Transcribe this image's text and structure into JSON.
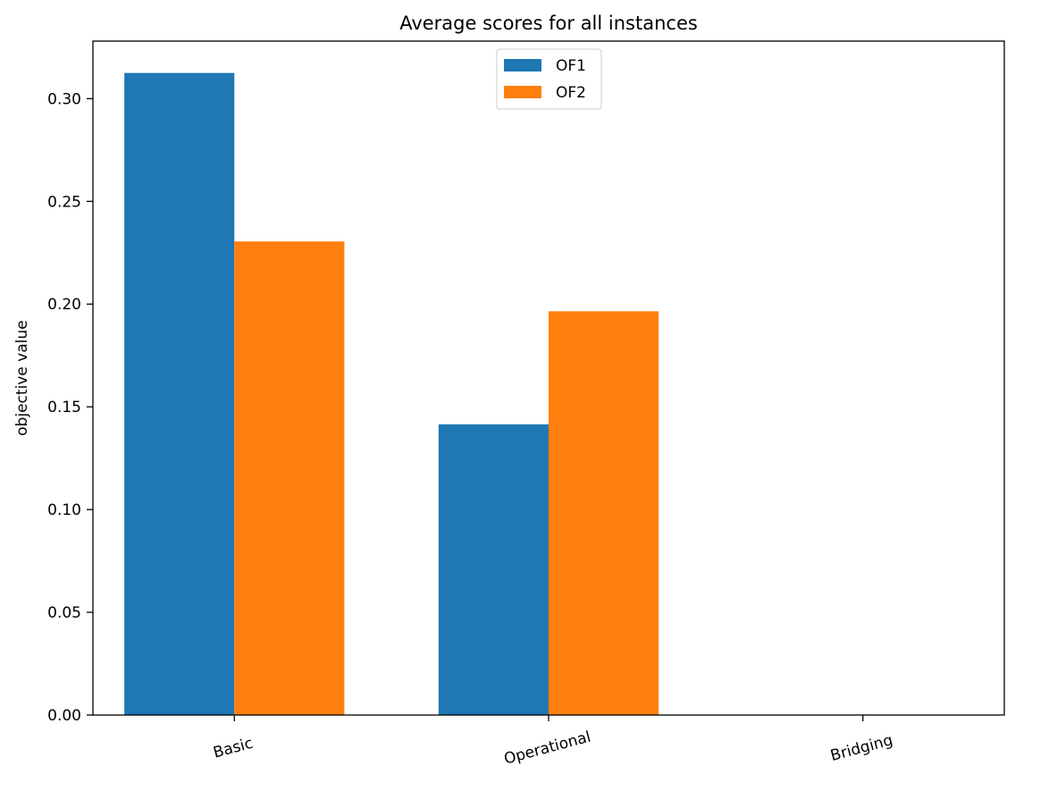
{
  "chart_data": {
    "type": "bar",
    "title": "Average scores for all instances",
    "xlabel": "",
    "ylabel": "objective value",
    "categories": [
      "Basic",
      "Operational",
      "Bridging"
    ],
    "series": [
      {
        "name": "OF1",
        "color": "#1f77b4",
        "values": [
          0.3125,
          0.1415,
          0.0
        ]
      },
      {
        "name": "OF2",
        "color": "#ff7f0e",
        "values": [
          0.2305,
          0.1965,
          0.0
        ]
      }
    ],
    "ylim": [
      0,
      0.328
    ],
    "yticks": [
      0.0,
      0.05,
      0.1,
      0.15,
      0.2,
      0.25,
      0.3
    ],
    "ytick_labels": [
      "0.00",
      "0.05",
      "0.10",
      "0.15",
      "0.20",
      "0.25",
      "0.30"
    ],
    "grid": false,
    "legend": {
      "position": "upper-center",
      "entries": [
        "OF1",
        "OF2"
      ]
    }
  }
}
